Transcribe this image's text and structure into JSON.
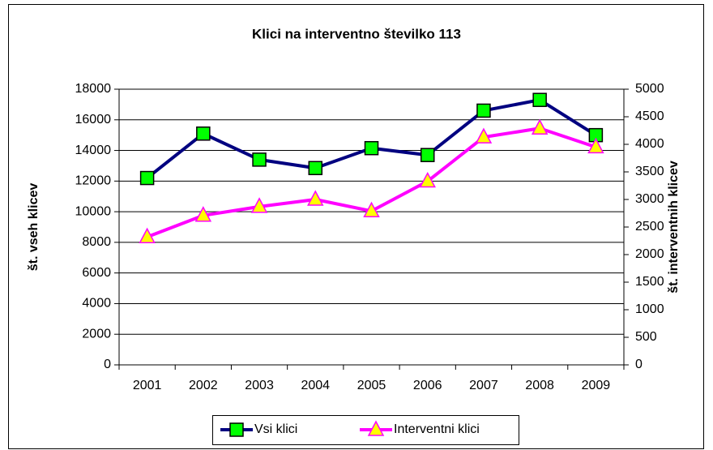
{
  "chart_data": {
    "type": "line",
    "title": "Klici na interventno številko 113",
    "categories": [
      "2001",
      "2002",
      "2003",
      "2004",
      "2005",
      "2006",
      "2007",
      "2008",
      "2009"
    ],
    "series": [
      {
        "name": "Vsi klici",
        "color": "#000080",
        "marker_color": "#00ff00",
        "values": [
          12200,
          15100,
          13400,
          12850,
          14150,
          13700,
          16600,
          17300,
          15000
        ]
      },
      {
        "name": "Interventni klici",
        "color": "#ff00ff",
        "marker_color": "#ffff00",
        "axis": "y2",
        "values": [
          2320,
          2710,
          2870,
          3000,
          2790,
          3330,
          4130,
          4290,
          3950
        ]
      }
    ],
    "ylabel": "št. vseh klicev",
    "y2label": "št. interventnih klicev",
    "ylim": [
      0,
      18000
    ],
    "yticks": [
      0,
      2000,
      4000,
      6000,
      8000,
      10000,
      12000,
      14000,
      16000,
      18000
    ],
    "y2lim": [
      0,
      5000
    ],
    "y2ticks": [
      0,
      500,
      1000,
      1500,
      2000,
      2500,
      3000,
      3500,
      4000,
      4500,
      5000
    ],
    "grid": true,
    "legend": "bottom"
  }
}
